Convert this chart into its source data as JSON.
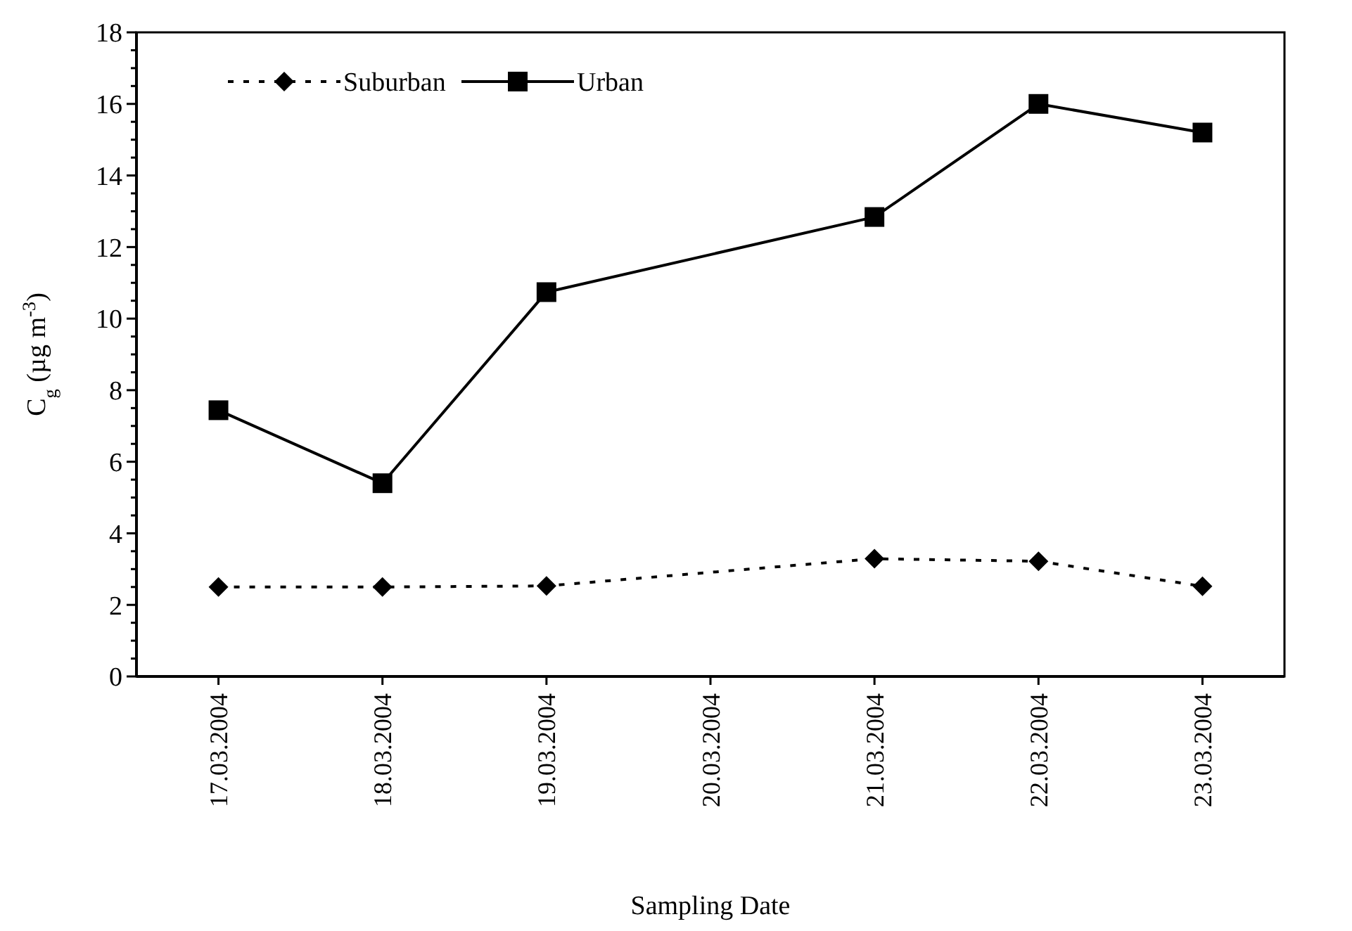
{
  "chart_data": {
    "type": "line",
    "xlabel": "Sampling Date",
    "ylabel": "C$_{g}$ (µg m$^{-3}$)",
    "xlim": [
      "2004-03-16T12:00",
      "2004-03-23T12:00"
    ],
    "xticks": [
      {
        "value": "2004-03-17",
        "label": "17.03.2004"
      },
      {
        "value": "2004-03-18",
        "label": "18.03.2004"
      },
      {
        "value": "2004-03-19",
        "label": "19.03.2004"
      },
      {
        "value": "2004-03-20",
        "label": "20.03.2004"
      },
      {
        "value": "2004-03-21",
        "label": "21.03.2004"
      },
      {
        "value": "2004-03-22",
        "label": "22.03.2004"
      },
      {
        "value": "2004-03-23",
        "label": "23.03.2004"
      }
    ],
    "ylim": [
      0,
      18
    ],
    "yticks": [
      0,
      {
        "value": 0.5,
        "label": null
      },
      {
        "value": 1,
        "label": null
      },
      {
        "value": 1.5,
        "label": null
      },
      2,
      {
        "value": 2.5,
        "label": null
      },
      {
        "value": 3,
        "label": null
      },
      {
        "value": 3.5,
        "label": null
      },
      4,
      {
        "value": 4.5,
        "label": null
      },
      {
        "value": 5,
        "label": null
      },
      {
        "value": 5.5,
        "label": null
      },
      6,
      {
        "value": 6.5,
        "label": null
      },
      {
        "value": 7,
        "label": null
      },
      {
        "value": 7.5,
        "label": null
      },
      8,
      {
        "value": 8.5,
        "label": null
      },
      {
        "value": 9,
        "label": null
      },
      {
        "value": 9.5,
        "label": null
      },
      10,
      {
        "value": 10.5,
        "label": null
      },
      {
        "value": 11,
        "label": null
      },
      {
        "value": 11.5,
        "label": null
      },
      12,
      {
        "value": 12.5,
        "label": null
      },
      {
        "value": 13,
        "label": null
      },
      {
        "value": 13.5,
        "label": null
      },
      14,
      {
        "value": 14.5,
        "label": null
      },
      {
        "value": 15,
        "label": null
      },
      {
        "value": 15.5,
        "label": null
      },
      16,
      {
        "value": 16.5,
        "label": null
      },
      {
        "value": 17,
        "label": null
      },
      {
        "value": 17.5,
        "label": null
      },
      18
    ],
    "grid": false,
    "legend": "top left",
    "series": [
      {
        "name": "Suburban",
        "color": "#000000",
        "marker": "diamond",
        "line_style": "dotted",
        "x": [
          "2004-03-17",
          "2004-03-18",
          "2004-03-19",
          "2004-03-21",
          "2004-03-22",
          "2004-03-23"
        ],
        "values": [
          2.5,
          2.5,
          2.53,
          3.29,
          3.22,
          2.52
        ]
      },
      {
        "name": "Urban",
        "color": "#000000",
        "marker": "square",
        "line_style": "solid",
        "x": [
          "2004-03-17",
          "2004-03-18",
          "2004-03-19",
          "2004-03-21",
          "2004-03-22",
          "2004-03-23"
        ],
        "values": [
          7.44,
          5.4,
          10.74,
          12.84,
          16.0,
          15.2
        ]
      }
    ]
  }
}
